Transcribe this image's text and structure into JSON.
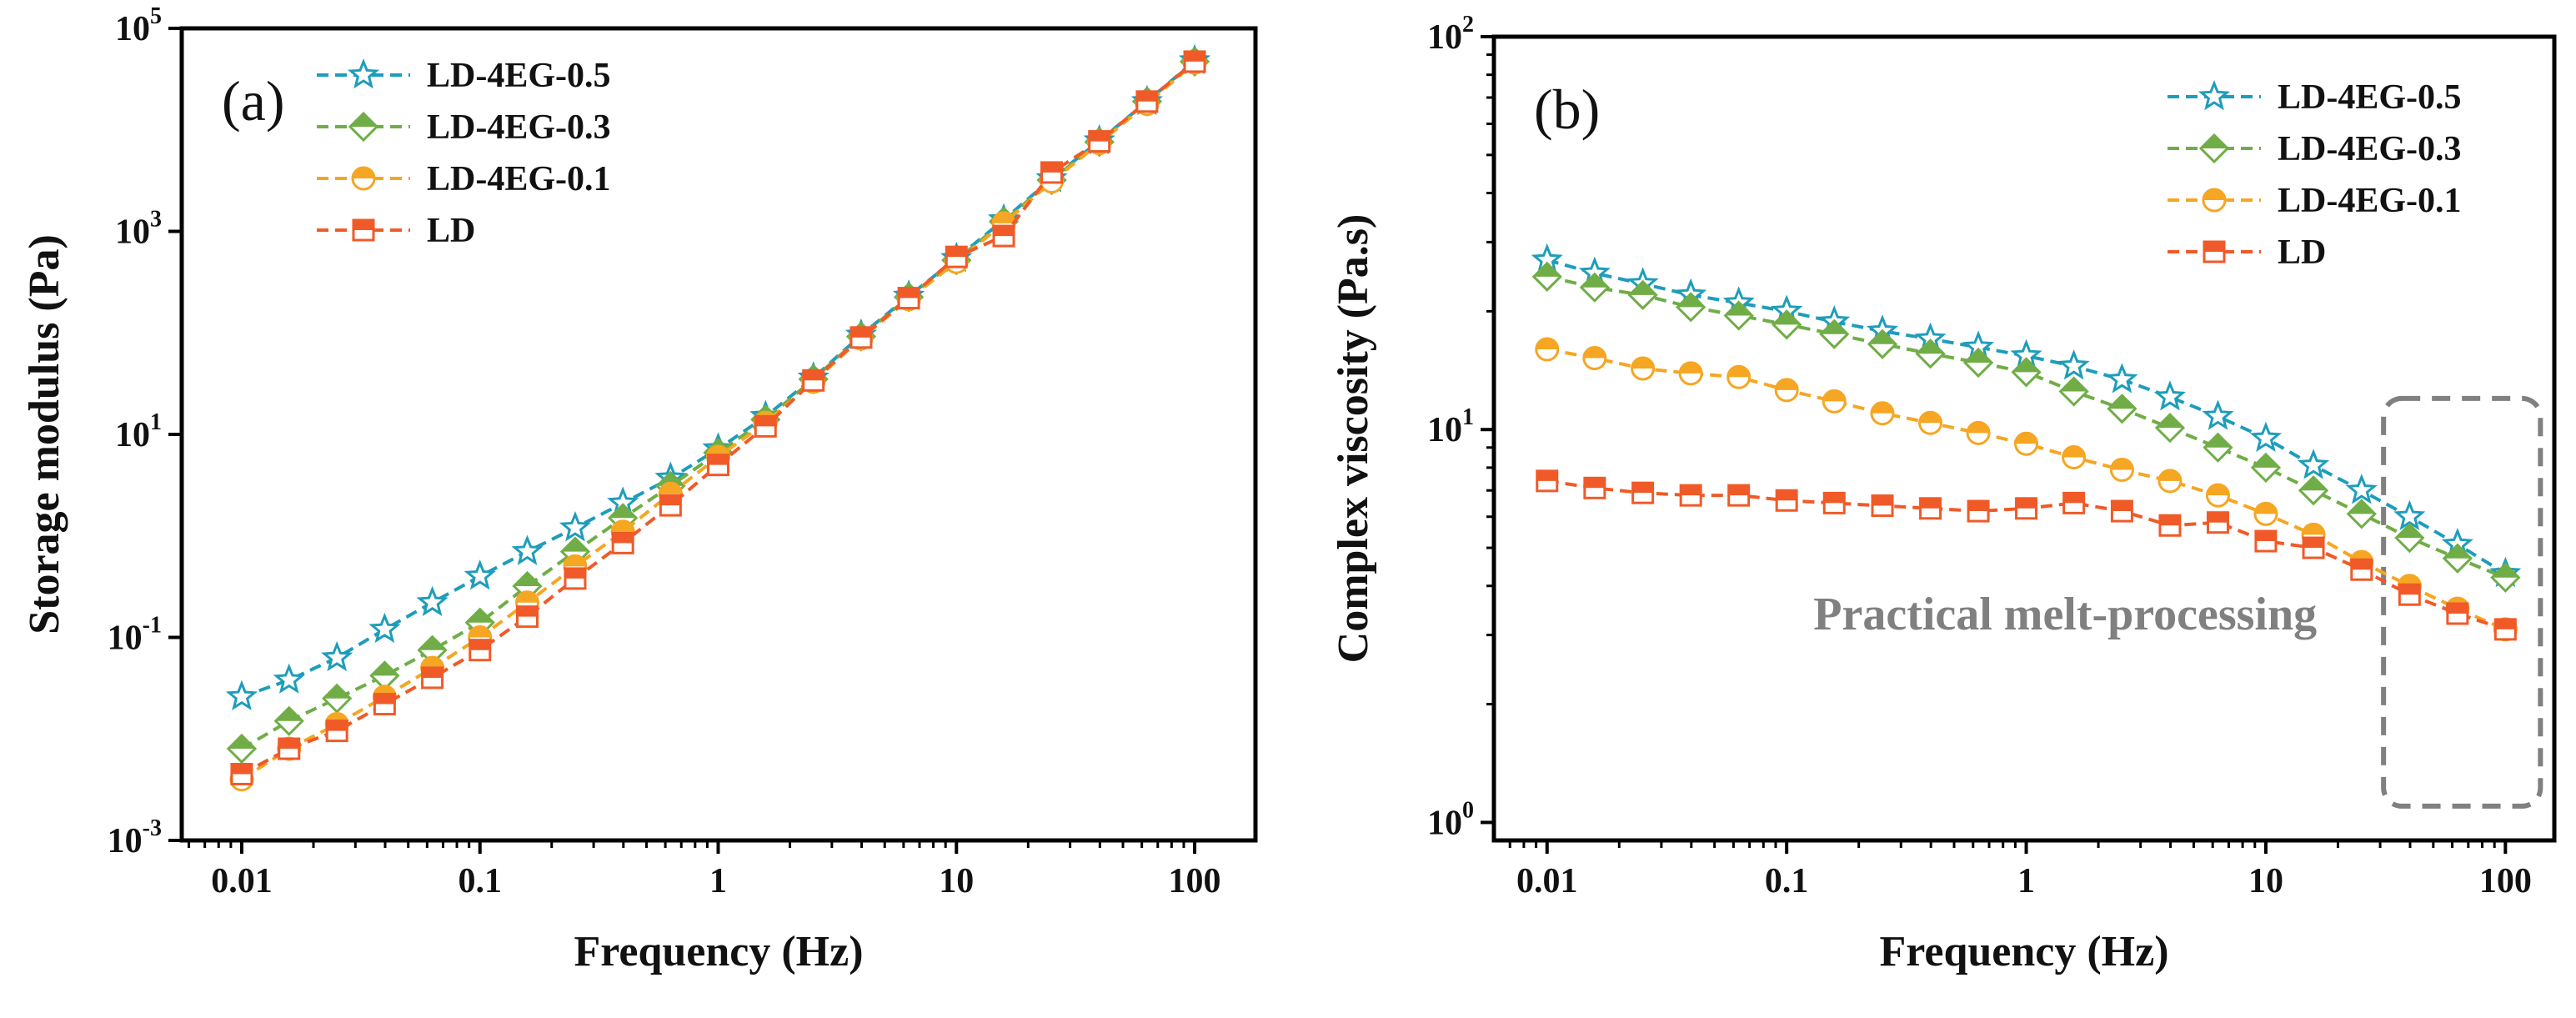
{
  "figure": {
    "colors": {
      "LD-4EG-0.5": "#1E9DBB",
      "LD-4EG-0.3": "#70AD47",
      "LD-4EG-0.1": "#F5A623",
      "LD": "#F05A28"
    }
  },
  "chart_data": [
    {
      "id": "a",
      "type": "line",
      "panel_label": "(a)",
      "xlabel": "Frequency (Hz)",
      "ylabel": "Storage modulus (Pa)",
      "xscale": "log",
      "yscale": "log",
      "xlim": [
        0.0056,
        180
      ],
      "ylim": [
        0.001,
        100000
      ],
      "xticks": [
        0.01,
        0.1,
        1,
        10,
        100
      ],
      "xtick_labels": [
        "0.01",
        "0.1",
        "1",
        "10",
        "100"
      ],
      "yticks": [
        0.001,
        0.1,
        10,
        1000,
        100000
      ],
      "ytick_labels": [
        {
          "base": "10",
          "exp": "-3"
        },
        {
          "base": "10",
          "exp": "-1"
        },
        {
          "base": "10",
          "exp": "1"
        },
        {
          "base": "10",
          "exp": "3"
        },
        {
          "base": "10",
          "exp": "5"
        }
      ],
      "legend_position": "top-left",
      "x": [
        0.01,
        0.0158,
        0.0251,
        0.0398,
        0.0631,
        0.1,
        0.158,
        0.251,
        0.398,
        0.631,
        1,
        1.58,
        2.51,
        3.98,
        6.31,
        10,
        15.8,
        25.1,
        39.8,
        63.1,
        100
      ],
      "series": [
        {
          "name": "LD-4EG-0.5",
          "marker": "star",
          "line": "dashed",
          "values": [
            0.026,
            0.038,
            0.063,
            0.12,
            0.22,
            0.4,
            0.7,
            1.2,
            2.1,
            3.7,
            7.2,
            15,
            36,
            95,
            230,
            540,
            1300,
            3300,
            7800,
            19000,
            48000
          ]
        },
        {
          "name": "LD-4EG-0.3",
          "marker": "diamond",
          "line": "dashed",
          "values": [
            0.008,
            0.015,
            0.025,
            0.042,
            0.075,
            0.14,
            0.32,
            0.7,
            1.5,
            3.1,
            6.6,
            14,
            35,
            92,
            225,
            520,
            1250,
            3200,
            7600,
            19000,
            47000
          ]
        },
        {
          "name": "LD-4EG-0.1",
          "marker": "circle",
          "line": "dashed",
          "values": [
            0.004,
            0.008,
            0.014,
            0.026,
            0.05,
            0.1,
            0.22,
            0.5,
            1.1,
            2.6,
            6,
            13,
            33,
            88,
            215,
            500,
            1200,
            3100,
            7400,
            18000,
            46000
          ]
        },
        {
          "name": "LD",
          "marker": "square",
          "line": "dashed",
          "values": [
            0.0045,
            0.008,
            0.012,
            0.022,
            0.04,
            0.075,
            0.16,
            0.38,
            0.85,
            2.0,
            5.0,
            12,
            34,
            90,
            220,
            560,
            900,
            3800,
            7700,
            19000,
            47000
          ]
        }
      ]
    },
    {
      "id": "b",
      "type": "line",
      "panel_label": "(b)",
      "xlabel": "Frequency (Hz)",
      "ylabel": "Complex viscosity (Pa.s)",
      "xscale": "log",
      "yscale": "log",
      "xlim": [
        0.006,
        160
      ],
      "ylim": [
        0.9,
        100
      ],
      "xticks": [
        0.01,
        0.1,
        1,
        10,
        100
      ],
      "xtick_labels": [
        "0.01",
        "0.1",
        "1",
        "10",
        "100"
      ],
      "yticks": [
        1,
        10,
        100
      ],
      "ytick_labels": [
        {
          "base": "10",
          "exp": "0"
        },
        {
          "base": "10",
          "exp": "1"
        },
        {
          "base": "10",
          "exp": "2"
        }
      ],
      "legend_position": "top-right",
      "annotation": {
        "text": "Practical melt-processing",
        "box_x_range": [
          31,
          140
        ],
        "box_y_range": [
          1.1,
          12
        ]
      },
      "x": [
        0.01,
        0.0158,
        0.0251,
        0.0398,
        0.0631,
        0.1,
        0.158,
        0.251,
        0.398,
        0.631,
        1,
        1.58,
        2.51,
        3.98,
        6.31,
        10,
        15.8,
        25.1,
        39.8,
        63.1,
        100
      ],
      "series": [
        {
          "name": "LD-4EG-0.5",
          "marker": "star",
          "line": "dashed",
          "values": [
            27,
            25,
            23.5,
            22,
            21,
            20,
            18.8,
            17.8,
            17,
            16.2,
            15.4,
            14.5,
            13.4,
            12.1,
            10.8,
            9.5,
            8.1,
            7.0,
            6.0,
            5.1,
            4.3
          ]
        },
        {
          "name": "LD-4EG-0.3",
          "marker": "diamond",
          "line": "dashed",
          "values": [
            24.5,
            23,
            22,
            20.5,
            19.5,
            18.5,
            17.5,
            16.5,
            15.6,
            14.8,
            14,
            12.5,
            11.3,
            10.1,
            9,
            8,
            7,
            6.1,
            5.3,
            4.7,
            4.2
          ]
        },
        {
          "name": "LD-4EG-0.1",
          "marker": "circle",
          "line": "dashed",
          "values": [
            16,
            15.2,
            14.3,
            13.9,
            13.6,
            12.6,
            11.8,
            11,
            10.4,
            9.8,
            9.2,
            8.5,
            7.9,
            7.4,
            6.8,
            6.1,
            5.4,
            4.6,
            4.0,
            3.5,
            3.1
          ]
        },
        {
          "name": "LD",
          "marker": "square",
          "line": "dashed",
          "values": [
            7.4,
            7.1,
            6.9,
            6.8,
            6.8,
            6.6,
            6.5,
            6.4,
            6.3,
            6.2,
            6.3,
            6.5,
            6.2,
            5.7,
            5.8,
            5.2,
            5.0,
            4.4,
            3.8,
            3.4,
            3.1
          ]
        }
      ]
    }
  ]
}
